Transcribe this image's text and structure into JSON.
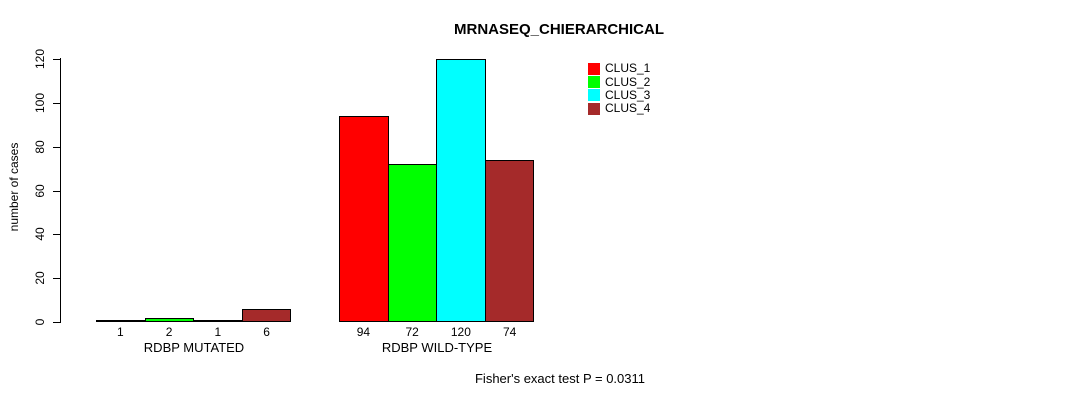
{
  "title": "MRNASEQ_CHIERARCHICAL",
  "annotation": "Fisher's exact test P = 0.0311",
  "chart_data": {
    "type": "bar",
    "title": "MRNASEQ_CHIERARCHICAL",
    "xlabel": "",
    "ylabel": "number of cases",
    "categories": [
      "RDBP MUTATED",
      "RDBP WILD-TYPE"
    ],
    "series": [
      {
        "name": "CLUS_1",
        "color": "#FF0000",
        "values": [
          1,
          94
        ]
      },
      {
        "name": "CLUS_2",
        "color": "#00FF00",
        "values": [
          2,
          72
        ]
      },
      {
        "name": "CLUS_3",
        "color": "#00FFFF",
        "values": [
          1,
          120
        ]
      },
      {
        "name": "CLUS_4",
        "color": "#A52A2A",
        "values": [
          6,
          74
        ]
      }
    ],
    "y_ticks": [
      0,
      20,
      40,
      60,
      80,
      100,
      120
    ],
    "ylim": [
      0,
      120
    ],
    "grid": false,
    "bar_borders_color": "#000000",
    "bar_value_labels": [
      [
        1,
        2,
        1,
        6
      ],
      [
        94,
        72,
        120,
        74
      ]
    ],
    "legend_position": "top-right",
    "legend_entries": [
      "CLUS_1",
      "CLUS_2",
      "CLUS_3",
      "CLUS_4"
    ],
    "annotation": "Fisher's exact test P = 0.0311"
  }
}
